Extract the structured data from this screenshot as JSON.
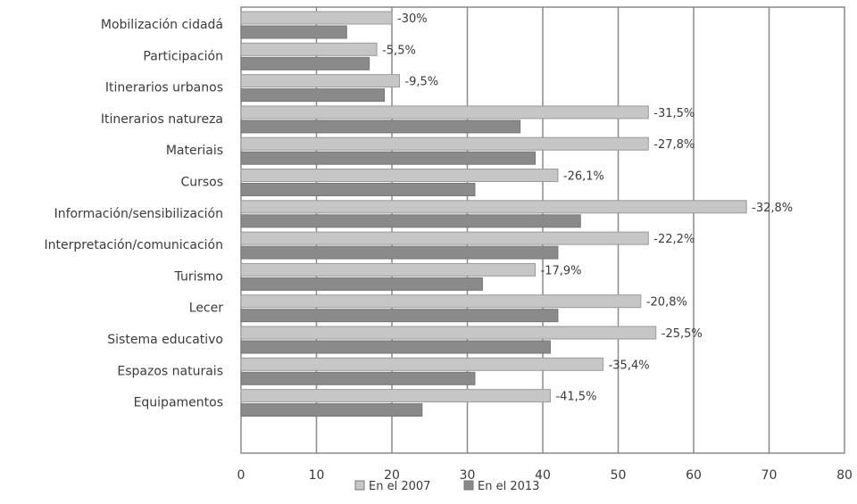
{
  "chart_data": {
    "type": "bar",
    "orientation": "horizontal",
    "title": "",
    "xlabel": "",
    "ylabel": "",
    "xlim": [
      0,
      80
    ],
    "x_ticks": [
      0,
      10,
      20,
      30,
      40,
      50,
      60,
      70,
      80
    ],
    "grid": "vertical",
    "legend_position": "bottom",
    "categories": [
      "Mobilización cidadá",
      "Participación",
      "Itinerarios urbanos",
      "Itinerarios natureza",
      "Materiais",
      "Cursos",
      "Información/sensibilización",
      "Interpretación/comunicación",
      "Turismo",
      "Lecer",
      "Sistema educativo",
      "Espazos naturais",
      "Equipamentos"
    ],
    "series": [
      {
        "name": "En el 2007",
        "color": "#c6c6c6",
        "values": [
          20,
          18,
          21,
          54,
          54,
          42,
          67,
          54,
          39,
          53,
          55,
          48,
          41
        ]
      },
      {
        "name": "En el 2013",
        "color": "#8a8a8a",
        "values": [
          14,
          17,
          19,
          37,
          39,
          31,
          45,
          42,
          32,
          42,
          41,
          31,
          24
        ]
      }
    ],
    "annotations": [
      "-30%",
      "-5,5%",
      "-9,5%",
      "-31,5%",
      "-27,8%",
      "-26,1%",
      "-32,8%",
      "-22,2%",
      "-17,9%",
      "-20,8%",
      "-25,5%",
      "-35,4%",
      "-41,5%"
    ]
  }
}
